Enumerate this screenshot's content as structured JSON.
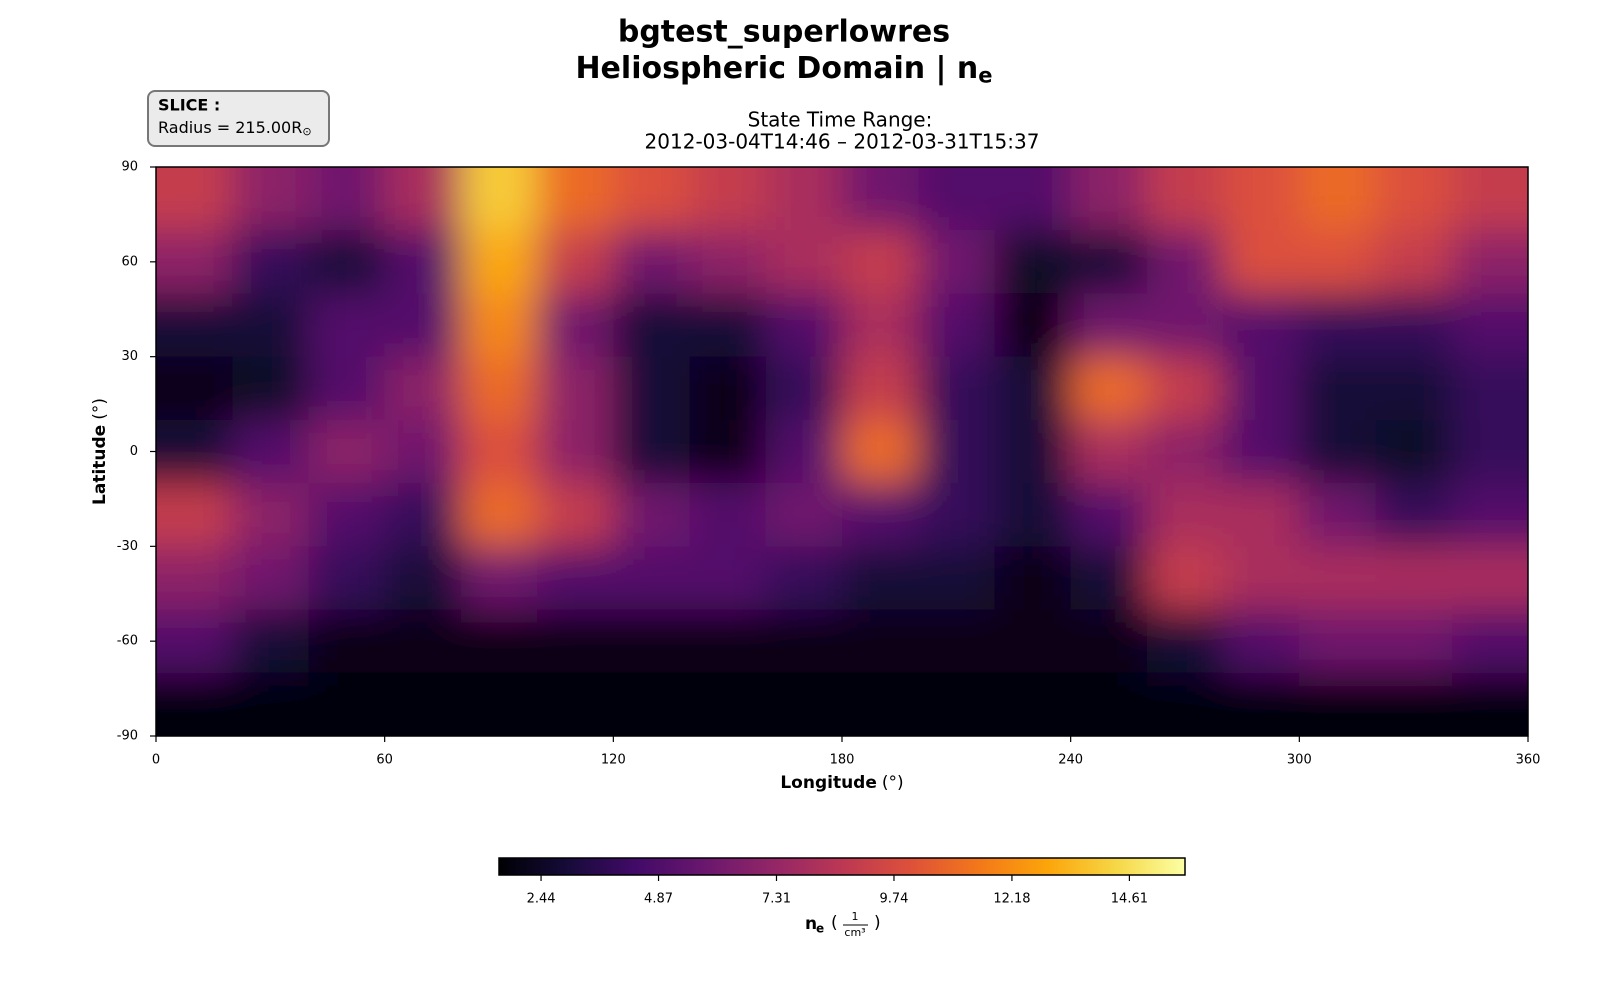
{
  "chart_data": {
    "type": "heatmap",
    "title": "bgtest_superlowres",
    "subtitle": {
      "text": "Heliospheric Domain | n",
      "subscript": "e"
    },
    "slice": {
      "title": "SLICE :",
      "text": "Radius = 215.00R",
      "subscript": "⊙"
    },
    "time_range": {
      "label": "State Time Range:",
      "text": "2012-03-04T14:46 – 2012-03-31T15:37"
    },
    "xlabel": {
      "text": "Longitude",
      "unit": "(°)"
    },
    "ylabel": {
      "text": "Latitude",
      "unit": "(°)"
    },
    "xlim": [
      0,
      360
    ],
    "xticks": [
      0,
      60,
      120,
      180,
      240,
      300,
      360
    ],
    "ylim": [
      -90,
      90
    ],
    "yticks": [
      -90,
      -60,
      -30,
      0,
      30,
      60,
      90
    ],
    "x": [
      10,
      30,
      50,
      70,
      90,
      110,
      130,
      150,
      170,
      190,
      210,
      230,
      250,
      270,
      290,
      310,
      330,
      350
    ],
    "y": [
      80,
      60,
      40,
      20,
      0,
      -20,
      -40,
      -60,
      -80
    ],
    "z": [
      [
        9,
        7,
        6,
        8,
        14,
        11,
        10,
        9,
        8,
        6,
        5,
        5,
        7,
        9,
        10,
        11,
        10,
        9
      ],
      [
        7,
        4,
        3,
        5,
        13,
        9,
        6,
        7,
        8,
        9,
        6,
        2.5,
        3,
        6,
        10,
        10,
        9,
        7
      ],
      [
        3,
        3,
        5,
        5,
        12,
        6,
        3,
        3,
        5,
        8,
        5,
        2,
        6,
        6,
        5,
        4,
        4,
        5
      ],
      [
        2,
        2.5,
        5,
        7,
        11,
        7,
        3,
        2,
        4,
        9,
        4,
        3,
        11,
        9,
        5,
        3,
        3,
        4
      ],
      [
        3,
        5,
        7,
        6,
        10,
        7,
        3,
        2,
        5,
        11,
        4,
        3,
        8,
        7,
        5,
        3,
        2.5,
        4
      ],
      [
        9,
        7,
        5,
        4,
        11,
        9,
        6,
        5,
        6,
        5,
        4,
        3,
        5,
        8,
        8,
        6,
        4,
        5
      ],
      [
        7,
        6,
        4,
        3,
        6,
        5,
        5,
        5,
        4,
        3,
        3,
        2,
        3,
        9,
        8,
        8,
        8,
        8
      ],
      [
        5,
        3,
        2,
        2,
        2,
        2,
        2,
        2,
        2,
        2,
        2,
        2,
        2,
        3,
        5,
        6,
        6,
        5
      ],
      [
        1.8,
        1.8,
        1.8,
        1.8,
        1.8,
        1.8,
        1.8,
        1.8,
        1.8,
        1.8,
        1.8,
        1.8,
        1.8,
        1.8,
        1.8,
        1.8,
        1.8,
        1.8
      ]
    ],
    "colormap": "inferno",
    "clim": [
      1.57,
      15.76
    ],
    "cticks": [
      2.44,
      4.87,
      7.31,
      9.74,
      12.18,
      14.61
    ],
    "clabel": {
      "text": "n",
      "subscript": "e",
      "open": "(",
      "numerator": "1",
      "denominator": "cm³",
      "close": ")"
    }
  }
}
